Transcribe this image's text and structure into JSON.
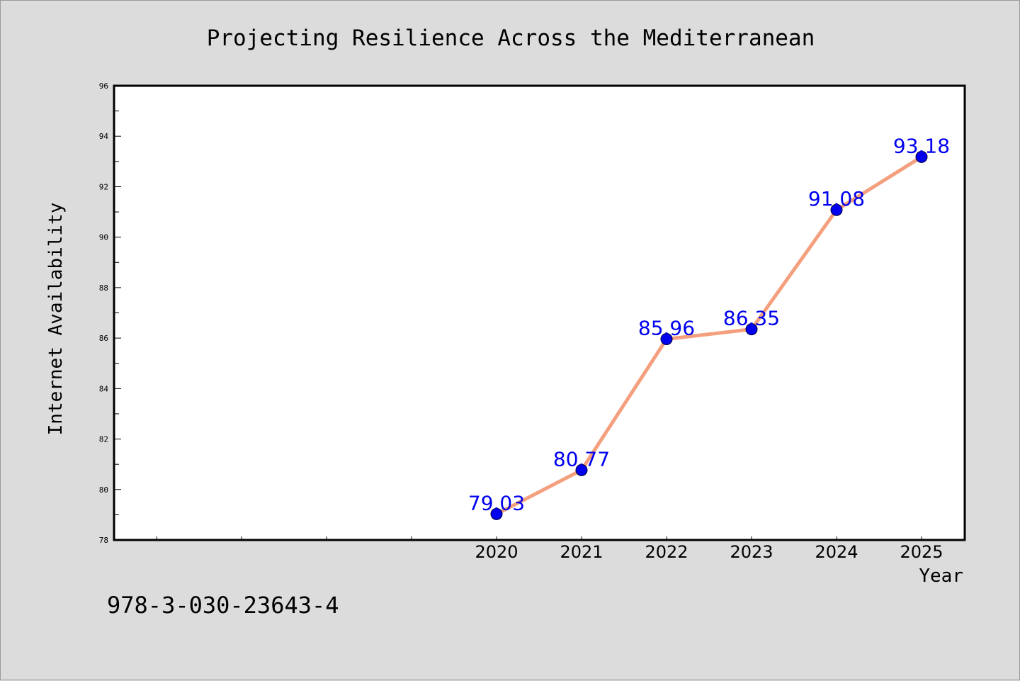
{
  "chart_data": {
    "type": "line",
    "title": "Projecting Resilience Across the Mediterranean",
    "xlabel": "Year",
    "ylabel": "Internet Availability",
    "categories": [
      "2020",
      "2021",
      "2022",
      "2023",
      "2024",
      "2025"
    ],
    "series": [
      {
        "values": [
          79.03,
          80.77,
          85.96,
          86.35,
          91.08,
          93.18
        ]
      }
    ],
    "data_labels": [
      "79.03",
      "80.77",
      "85.96",
      "86.35",
      "91.08",
      "93.18"
    ],
    "ylim": [
      78,
      96
    ],
    "y_ticks": [
      "78",
      "80",
      "82",
      "84",
      "86",
      "88",
      "90",
      "92",
      "94",
      "96"
    ],
    "grid": false,
    "colors": {
      "line": "#f4a07e",
      "marker": "#0000ee",
      "label": "#0000ee",
      "background": "#dcdcdc",
      "plot_area": "#ffffff"
    }
  },
  "footer": {
    "isbn": "978-3-030-23643-4"
  }
}
